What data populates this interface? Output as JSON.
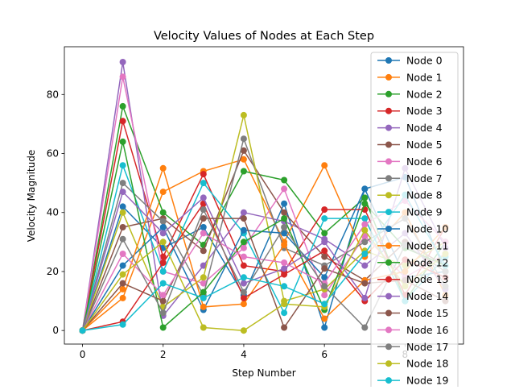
{
  "chart_data": {
    "type": "line",
    "title": "Velocity Values of Nodes at Each Step",
    "xlabel": "Step Number",
    "ylabel": "Velocity Magnitude",
    "xlim": [
      -0.45,
      9.45
    ],
    "ylim": [
      -4.6,
      96.2
    ],
    "xticks": [
      0,
      2,
      4,
      6,
      8
    ],
    "yticks": [
      0,
      20,
      40,
      60,
      80
    ],
    "grid": false,
    "legend_position": "top-right",
    "x": [
      0,
      1,
      2,
      3,
      4,
      5,
      6,
      7,
      8,
      9
    ],
    "series": [
      {
        "name": "Node 0",
        "color": "#1f77b4",
        "values": [
          0,
          42,
          28,
          35,
          12,
          43,
          1,
          48,
          18,
          20
        ]
      },
      {
        "name": "Node 1",
        "color": "#ff7f0e",
        "values": [
          0,
          11,
          47,
          54,
          58,
          30,
          56,
          25,
          40,
          12
        ]
      },
      {
        "name": "Node 2",
        "color": "#2ca02c",
        "values": [
          0,
          76,
          40,
          29,
          54,
          51,
          33,
          45,
          10,
          30
        ]
      },
      {
        "name": "Node 3",
        "color": "#d62728",
        "values": [
          0,
          71,
          25,
          53,
          22,
          20,
          41,
          41,
          12,
          35
        ]
      },
      {
        "name": "Node 4",
        "color": "#9467bd",
        "values": [
          0,
          91,
          5,
          22,
          40,
          37,
          31,
          22,
          33,
          14
        ]
      },
      {
        "name": "Node 5",
        "color": "#8c564b",
        "values": [
          0,
          35,
          38,
          27,
          61,
          40,
          25,
          17,
          30,
          22
        ]
      },
      {
        "name": "Node 6",
        "color": "#e377c2",
        "values": [
          0,
          86,
          20,
          16,
          28,
          48,
          12,
          32,
          18,
          26
        ]
      },
      {
        "name": "Node 7",
        "color": "#7f7f7f",
        "values": [
          0,
          50,
          37,
          12,
          65,
          28,
          22,
          30,
          38,
          15
        ]
      },
      {
        "name": "Node 8",
        "color": "#bcbd22",
        "values": [
          0,
          40,
          8,
          18,
          73,
          10,
          14,
          27,
          22,
          30
        ]
      },
      {
        "name": "Node 9",
        "color": "#17becf",
        "values": [
          0,
          56,
          20,
          50,
          33,
          6,
          38,
          38,
          10,
          25
        ]
      },
      {
        "name": "Node 10",
        "color": "#1f77b4",
        "values": [
          0,
          22,
          35,
          7,
          34,
          33,
          18,
          48,
          52,
          20
        ]
      },
      {
        "name": "Node 11",
        "color": "#ff7f0e",
        "values": [
          0,
          14,
          55,
          8,
          9,
          29,
          4,
          17,
          20,
          35
        ]
      },
      {
        "name": "Node 12",
        "color": "#2ca02c",
        "values": [
          0,
          64,
          1,
          13,
          30,
          38,
          7,
          43,
          28,
          22
        ]
      },
      {
        "name": "Node 13",
        "color": "#d62728",
        "values": [
          0,
          3,
          23,
          43,
          11,
          19,
          27,
          10,
          24,
          18
        ]
      },
      {
        "name": "Node 14",
        "color": "#9467bd",
        "values": [
          0,
          47,
          33,
          45,
          16,
          21,
          30,
          11,
          55,
          28
        ]
      },
      {
        "name": "Node 15",
        "color": "#8c564b",
        "values": [
          0,
          16,
          10,
          38,
          38,
          1,
          21,
          16,
          17,
          10
        ]
      },
      {
        "name": "Node 16",
        "color": "#e377c2",
        "values": [
          0,
          26,
          12,
          33,
          25,
          23,
          16,
          36,
          44,
          30
        ]
      },
      {
        "name": "Node 17",
        "color": "#7f7f7f",
        "values": [
          0,
          31,
          6,
          41,
          13,
          35,
          15,
          1,
          29,
          20
        ]
      },
      {
        "name": "Node 18",
        "color": "#bcbd22",
        "values": [
          0,
          19,
          30,
          1,
          0,
          9,
          8,
          34,
          15,
          26
        ]
      },
      {
        "name": "Node 19",
        "color": "#17becf",
        "values": [
          0,
          2,
          16,
          11,
          18,
          15,
          9,
          26,
          46,
          22
        ]
      }
    ]
  }
}
